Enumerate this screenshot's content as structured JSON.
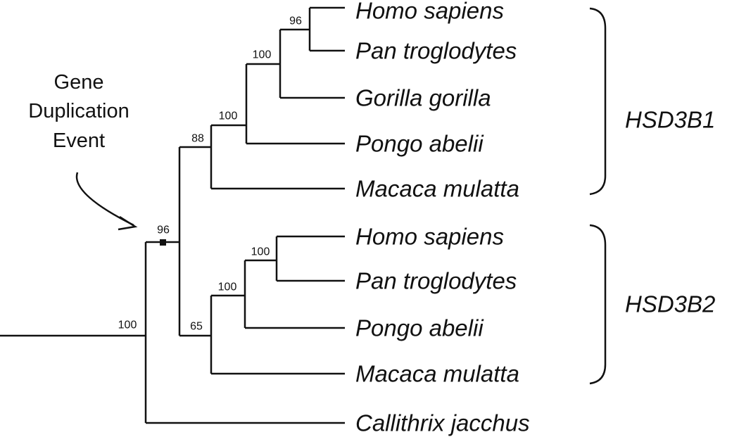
{
  "annotation": {
    "lines": [
      "Gene",
      "Duplication",
      "Event"
    ]
  },
  "taxa": [
    "Homo sapiens",
    "Pan troglodytes",
    "Gorilla gorilla",
    "Pongo abelii",
    "Macaca mulatta",
    "Homo sapiens",
    "Pan troglodytes",
    "Pongo abelii",
    "Macaca mulatta",
    "Callithrix jacchus"
  ],
  "support": [
    96,
    100,
    100,
    88,
    96,
    100,
    100,
    65,
    100
  ],
  "groups": [
    "HSD3B1",
    "HSD3B2"
  ]
}
